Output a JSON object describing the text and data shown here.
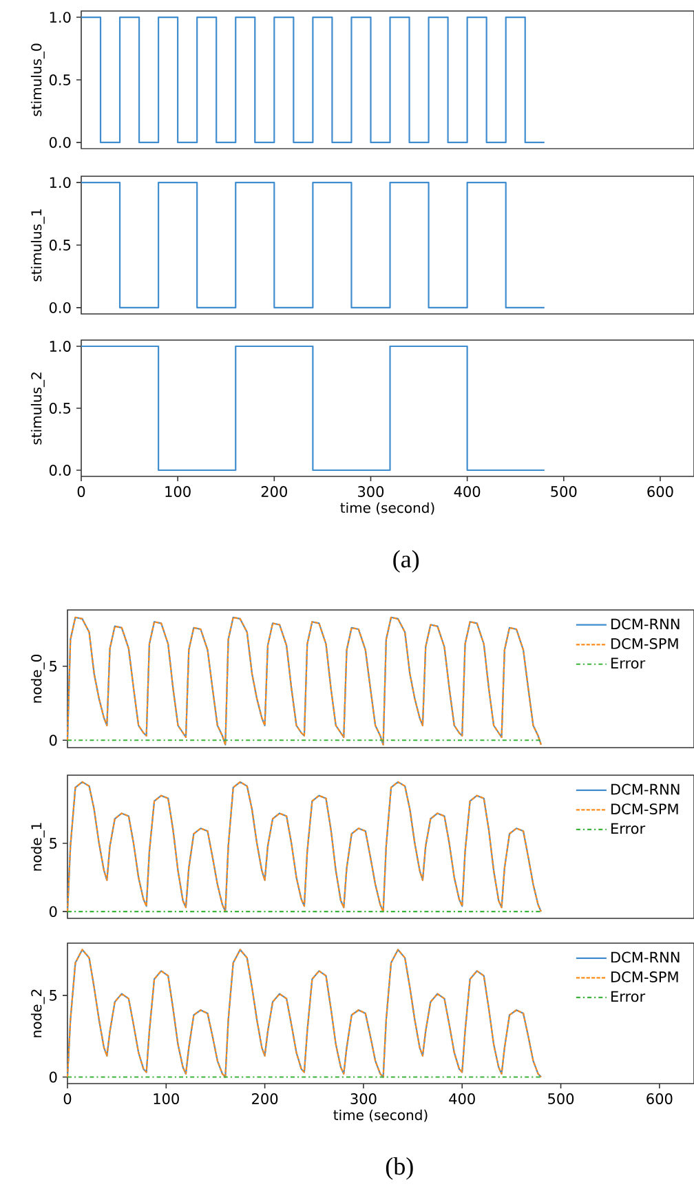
{
  "chart_data": [
    {
      "type": "step",
      "ylabel": "stimulus_0",
      "xlim": [
        0,
        635
      ],
      "ylim": [
        -0.05,
        1.05
      ],
      "yticks": [
        {
          "value": 0,
          "label": "0.0"
        },
        {
          "value": 0.5,
          "label": "0.5"
        },
        {
          "value": 1,
          "label": "1.0"
        }
      ],
      "tick_labels": "y",
      "series": [
        {
          "color": "#3f8ccf",
          "x": [
            0,
            20,
            40,
            60,
            80,
            100,
            120,
            140,
            160,
            180,
            200,
            220,
            240,
            260,
            280,
            300,
            320,
            340,
            360,
            380,
            400,
            420,
            440,
            460,
            480
          ],
          "values": [
            1,
            0,
            1,
            0,
            1,
            0,
            1,
            0,
            1,
            0,
            1,
            0,
            1,
            0,
            1,
            0,
            1,
            0,
            1,
            0,
            1,
            0,
            1,
            0,
            0
          ]
        }
      ]
    },
    {
      "type": "step",
      "ylabel": "stimulus_1",
      "xlim": [
        0,
        635
      ],
      "ylim": [
        -0.05,
        1.05
      ],
      "yticks": [
        {
          "value": 0,
          "label": "0.0"
        },
        {
          "value": 0.5,
          "label": "0.5"
        },
        {
          "value": 1,
          "label": "1.0"
        }
      ],
      "tick_labels": "y",
      "series": [
        {
          "color": "#3f8ccf",
          "x": [
            0,
            40,
            80,
            120,
            160,
            200,
            240,
            280,
            320,
            360,
            400,
            440,
            480
          ],
          "values": [
            1,
            0,
            1,
            0,
            1,
            0,
            1,
            0,
            1,
            0,
            1,
            0,
            0
          ]
        }
      ]
    },
    {
      "type": "step",
      "ylabel": "stimulus_2",
      "xlabel": "time (second)",
      "annotations": [
        "(a)"
      ],
      "xlim": [
        0,
        635
      ],
      "ylim": [
        -0.05,
        1.05
      ],
      "xticks": [
        0,
        100,
        200,
        300,
        400,
        500,
        600
      ],
      "yticks": [
        {
          "value": 0,
          "label": "0.0"
        },
        {
          "value": 0.5,
          "label": "0.5"
        },
        {
          "value": 1,
          "label": "1.0"
        }
      ],
      "series": [
        {
          "color": "#3f8ccf",
          "x": [
            0,
            80,
            160,
            240,
            320,
            400,
            480
          ],
          "values": [
            1,
            0,
            1,
            0,
            1,
            0,
            0
          ]
        }
      ]
    },
    {
      "type": "line",
      "ylabel": "node_0",
      "xlim": [
        0,
        635
      ],
      "ylim": [
        -0.5,
        8.8
      ],
      "yticks": [
        0,
        5
      ],
      "tick_labels": "y",
      "legend": "top right",
      "x": [
        0,
        3,
        8,
        15,
        22,
        27,
        32,
        37,
        40,
        43,
        48,
        55,
        62,
        67,
        72,
        77,
        80,
        83,
        88,
        95,
        102,
        107,
        112,
        117,
        120,
        123,
        128,
        135,
        142,
        147,
        152,
        157,
        160,
        163,
        168,
        175,
        182,
        187,
        192,
        197,
        200,
        203,
        208,
        215,
        222,
        227,
        232,
        237,
        240,
        243,
        248,
        255,
        262,
        267,
        272,
        277,
        280,
        283,
        288,
        295,
        302,
        307,
        312,
        317,
        320,
        323,
        328,
        335,
        342,
        347,
        352,
        357,
        360,
        363,
        368,
        375,
        382,
        387,
        392,
        397,
        400,
        403,
        408,
        415,
        422,
        427,
        432,
        437,
        440,
        443,
        448,
        455,
        462,
        467,
        472,
        477,
        480
      ],
      "series": [
        {
          "name": "DCM-RNN",
          "color": "#3f8ccf",
          "line_style": "solid",
          "values": [
            0,
            6.8,
            8.3,
            8.2,
            7.3,
            4.5,
            2.8,
            1.5,
            1.0,
            6.2,
            7.7,
            7.6,
            6.2,
            3.5,
            1.0,
            0.5,
            0.3,
            6.5,
            8.0,
            7.9,
            6.5,
            3.5,
            1.0,
            0.5,
            0.2,
            6.1,
            7.6,
            7.5,
            6.1,
            3.5,
            1.0,
            0.3,
            -0.3,
            6.8,
            8.3,
            8.2,
            7.3,
            4.5,
            2.8,
            1.5,
            1.0,
            6.4,
            7.9,
            7.8,
            6.4,
            3.5,
            1.0,
            0.5,
            0.3,
            6.5,
            8.0,
            7.9,
            6.5,
            3.5,
            1.0,
            0.5,
            0.2,
            6.1,
            7.6,
            7.5,
            6.1,
            3.5,
            1.0,
            0.3,
            -0.3,
            6.8,
            8.3,
            8.2,
            7.3,
            4.5,
            2.8,
            1.5,
            1.0,
            6.3,
            7.8,
            7.7,
            6.3,
            3.5,
            1.0,
            0.5,
            0.3,
            6.5,
            8.0,
            7.9,
            6.5,
            3.5,
            1.0,
            0.5,
            0.2,
            6.1,
            7.6,
            7.5,
            6.1,
            3.5,
            1.0,
            0.3,
            -0.3
          ]
        },
        {
          "name": "DCM-SPM",
          "color": "#ff8c1a",
          "line_style": "dashed",
          "values": [
            0,
            6.8,
            8.3,
            8.2,
            7.3,
            4.5,
            2.8,
            1.5,
            1.0,
            6.2,
            7.7,
            7.6,
            6.2,
            3.5,
            1.0,
            0.5,
            0.3,
            6.5,
            8.0,
            7.9,
            6.5,
            3.5,
            1.0,
            0.5,
            0.2,
            6.1,
            7.6,
            7.5,
            6.1,
            3.5,
            1.0,
            0.3,
            -0.3,
            6.8,
            8.3,
            8.2,
            7.3,
            4.5,
            2.8,
            1.5,
            1.0,
            6.4,
            7.9,
            7.8,
            6.4,
            3.5,
            1.0,
            0.5,
            0.3,
            6.5,
            8.0,
            7.9,
            6.5,
            3.5,
            1.0,
            0.5,
            0.2,
            6.1,
            7.6,
            7.5,
            6.1,
            3.5,
            1.0,
            0.3,
            -0.3,
            6.8,
            8.3,
            8.2,
            7.3,
            4.5,
            2.8,
            1.5,
            1.0,
            6.3,
            7.8,
            7.7,
            6.3,
            3.5,
            1.0,
            0.5,
            0.3,
            6.5,
            8.0,
            7.9,
            6.5,
            3.5,
            1.0,
            0.5,
            0.2,
            6.1,
            7.6,
            7.5,
            6.1,
            3.5,
            1.0,
            0.3,
            -0.3
          ]
        },
        {
          "name": "Error",
          "color": "#3cb43c",
          "line_style": "dashdot",
          "x": [
            0,
            480
          ],
          "values": [
            0,
            0
          ]
        }
      ]
    },
    {
      "type": "line",
      "ylabel": "node_1",
      "xlim": [
        0,
        635
      ],
      "ylim": [
        -0.5,
        10
      ],
      "yticks": [
        0,
        5
      ],
      "tick_labels": "y",
      "legend": "top right",
      "x": [
        0,
        3,
        8,
        15,
        22,
        27,
        32,
        37,
        40,
        43,
        48,
        55,
        62,
        67,
        72,
        77,
        80,
        83,
        88,
        95,
        102,
        107,
        112,
        117,
        120,
        123,
        128,
        135,
        142,
        147,
        152,
        157,
        160,
        163,
        168,
        175,
        182,
        187,
        192,
        197,
        200,
        203,
        208,
        215,
        222,
        227,
        232,
        237,
        240,
        243,
        248,
        255,
        262,
        267,
        272,
        277,
        280,
        283,
        288,
        295,
        302,
        307,
        312,
        317,
        320,
        323,
        328,
        335,
        342,
        347,
        352,
        357,
        360,
        363,
        368,
        375,
        382,
        387,
        392,
        397,
        400,
        403,
        408,
        415,
        422,
        427,
        432,
        437,
        440,
        443,
        448,
        455,
        462,
        467,
        472,
        477,
        480
      ],
      "series": [
        {
          "name": "DCM-RNN",
          "color": "#3f8ccf",
          "line_style": "solid",
          "values": [
            0,
            4.8,
            9.1,
            9.5,
            9.2,
            7.5,
            5.0,
            3.0,
            2.3,
            4.8,
            6.8,
            7.2,
            7.0,
            5.0,
            2.5,
            0.9,
            0.4,
            4.4,
            8.1,
            8.5,
            8.3,
            6.0,
            3.0,
            0.8,
            0.3,
            3.2,
            5.7,
            6.1,
            5.9,
            4.0,
            2.0,
            0.5,
            0,
            4.8,
            9.1,
            9.5,
            9.2,
            7.5,
            5.0,
            3.0,
            2.3,
            4.8,
            6.8,
            7.2,
            7.0,
            5.0,
            2.5,
            0.9,
            0.4,
            4.4,
            8.1,
            8.5,
            8.3,
            6.0,
            3.0,
            0.8,
            0.3,
            3.2,
            5.7,
            6.1,
            5.9,
            4.0,
            2.0,
            0.5,
            0,
            4.8,
            9.1,
            9.5,
            9.2,
            7.5,
            5.0,
            3.0,
            2.3,
            4.8,
            6.8,
            7.2,
            7.0,
            5.0,
            2.5,
            0.9,
            0.4,
            4.4,
            8.1,
            8.5,
            8.3,
            6.0,
            3.0,
            0.8,
            0.3,
            3.2,
            5.7,
            6.1,
            5.9,
            4.0,
            2.0,
            0.5,
            0
          ]
        },
        {
          "name": "DCM-SPM",
          "color": "#ff8c1a",
          "line_style": "dashed",
          "values": [
            0,
            4.8,
            9.1,
            9.5,
            9.2,
            7.5,
            5.0,
            3.0,
            2.3,
            4.8,
            6.8,
            7.2,
            7.0,
            5.0,
            2.5,
            0.9,
            0.4,
            4.4,
            8.1,
            8.5,
            8.3,
            6.0,
            3.0,
            0.8,
            0.3,
            3.2,
            5.7,
            6.1,
            5.9,
            4.0,
            2.0,
            0.5,
            0,
            4.8,
            9.1,
            9.5,
            9.2,
            7.5,
            5.0,
            3.0,
            2.3,
            4.8,
            6.8,
            7.2,
            7.0,
            5.0,
            2.5,
            0.9,
            0.4,
            4.4,
            8.1,
            8.5,
            8.3,
            6.0,
            3.0,
            0.8,
            0.3,
            3.2,
            5.7,
            6.1,
            5.9,
            4.0,
            2.0,
            0.5,
            0,
            4.8,
            9.1,
            9.5,
            9.2,
            7.5,
            5.0,
            3.0,
            2.3,
            4.8,
            6.8,
            7.2,
            7.0,
            5.0,
            2.5,
            0.9,
            0.4,
            4.4,
            8.1,
            8.5,
            8.3,
            6.0,
            3.0,
            0.8,
            0.3,
            3.2,
            5.7,
            6.1,
            5.9,
            4.0,
            2.0,
            0.5,
            0
          ]
        },
        {
          "name": "Error",
          "color": "#3cb43c",
          "line_style": "dashdot",
          "x": [
            0,
            480
          ],
          "values": [
            0,
            0
          ]
        }
      ]
    },
    {
      "type": "line",
      "ylabel": "node_2",
      "xlabel": "time (second)",
      "annotations": [
        "(b)"
      ],
      "xlim": [
        0,
        635
      ],
      "ylim": [
        -0.4,
        8.2
      ],
      "xticks": [
        0,
        100,
        200,
        300,
        400,
        500,
        600
      ],
      "yticks": [
        0,
        5
      ],
      "legend": "top right",
      "x": [
        0,
        3,
        8,
        15,
        22,
        27,
        32,
        37,
        40,
        43,
        48,
        55,
        62,
        67,
        72,
        77,
        80,
        83,
        88,
        95,
        102,
        107,
        112,
        117,
        120,
        123,
        128,
        135,
        142,
        147,
        152,
        157,
        160,
        163,
        168,
        175,
        182,
        187,
        192,
        197,
        200,
        203,
        208,
        215,
        222,
        227,
        232,
        237,
        240,
        243,
        248,
        255,
        262,
        267,
        272,
        277,
        280,
        283,
        288,
        295,
        302,
        307,
        312,
        317,
        320,
        323,
        328,
        335,
        342,
        347,
        352,
        357,
        360,
        363,
        368,
        375,
        382,
        387,
        392,
        397,
        400,
        403,
        408,
        415,
        422,
        427,
        432,
        437,
        440,
        443,
        448,
        455,
        462,
        467,
        472,
        477,
        480
      ],
      "series": [
        {
          "name": "DCM-RNN",
          "color": "#3f8ccf",
          "line_style": "solid",
          "values": [
            0,
            3.5,
            7.0,
            7.8,
            7.3,
            5.5,
            3.5,
            1.8,
            1.3,
            2.8,
            4.6,
            5.1,
            4.8,
            3.2,
            1.5,
            0.5,
            0.3,
            2.8,
            6.0,
            6.5,
            6.2,
            4.2,
            2.0,
            0.6,
            0.2,
            1.8,
            3.8,
            4.1,
            3.9,
            2.5,
            1.0,
            0.2,
            0,
            3.5,
            7.0,
            7.8,
            7.3,
            5.5,
            3.5,
            1.8,
            1.3,
            2.8,
            4.6,
            5.1,
            4.8,
            3.2,
            1.5,
            0.5,
            0.3,
            2.8,
            6.0,
            6.5,
            6.2,
            4.2,
            2.0,
            0.6,
            0.2,
            1.8,
            3.8,
            4.1,
            3.9,
            2.5,
            1.0,
            0.2,
            0,
            3.5,
            7.0,
            7.8,
            7.3,
            5.5,
            3.5,
            1.8,
            1.3,
            2.8,
            4.6,
            5.1,
            4.8,
            3.2,
            1.5,
            0.5,
            0.3,
            2.8,
            6.0,
            6.5,
            6.2,
            4.2,
            2.0,
            0.6,
            0.2,
            1.8,
            3.8,
            4.1,
            3.9,
            2.5,
            1.0,
            0.2,
            0
          ]
        },
        {
          "name": "DCM-SPM",
          "color": "#ff8c1a",
          "line_style": "dashed",
          "values": [
            0,
            3.5,
            7.0,
            7.8,
            7.3,
            5.5,
            3.5,
            1.8,
            1.3,
            2.8,
            4.6,
            5.1,
            4.8,
            3.2,
            1.5,
            0.5,
            0.3,
            2.8,
            6.0,
            6.5,
            6.2,
            4.2,
            2.0,
            0.6,
            0.2,
            1.8,
            3.8,
            4.1,
            3.9,
            2.5,
            1.0,
            0.2,
            0,
            3.5,
            7.0,
            7.8,
            7.3,
            5.5,
            3.5,
            1.8,
            1.3,
            2.8,
            4.6,
            5.1,
            4.8,
            3.2,
            1.5,
            0.5,
            0.3,
            2.8,
            6.0,
            6.5,
            6.2,
            4.2,
            2.0,
            0.6,
            0.2,
            1.8,
            3.8,
            4.1,
            3.9,
            2.5,
            1.0,
            0.2,
            0,
            3.5,
            7.0,
            7.8,
            7.3,
            5.5,
            3.5,
            1.8,
            1.3,
            2.8,
            4.6,
            5.1,
            4.8,
            3.2,
            1.5,
            0.5,
            0.3,
            2.8,
            6.0,
            6.5,
            6.2,
            4.2,
            2.0,
            0.6,
            0.2,
            1.8,
            3.8,
            4.1,
            3.9,
            2.5,
            1.0,
            0.2,
            0
          ]
        },
        {
          "name": "Error",
          "color": "#3cb43c",
          "line_style": "dashdot",
          "x": [
            0,
            480
          ],
          "values": [
            0,
            0
          ]
        }
      ]
    }
  ]
}
